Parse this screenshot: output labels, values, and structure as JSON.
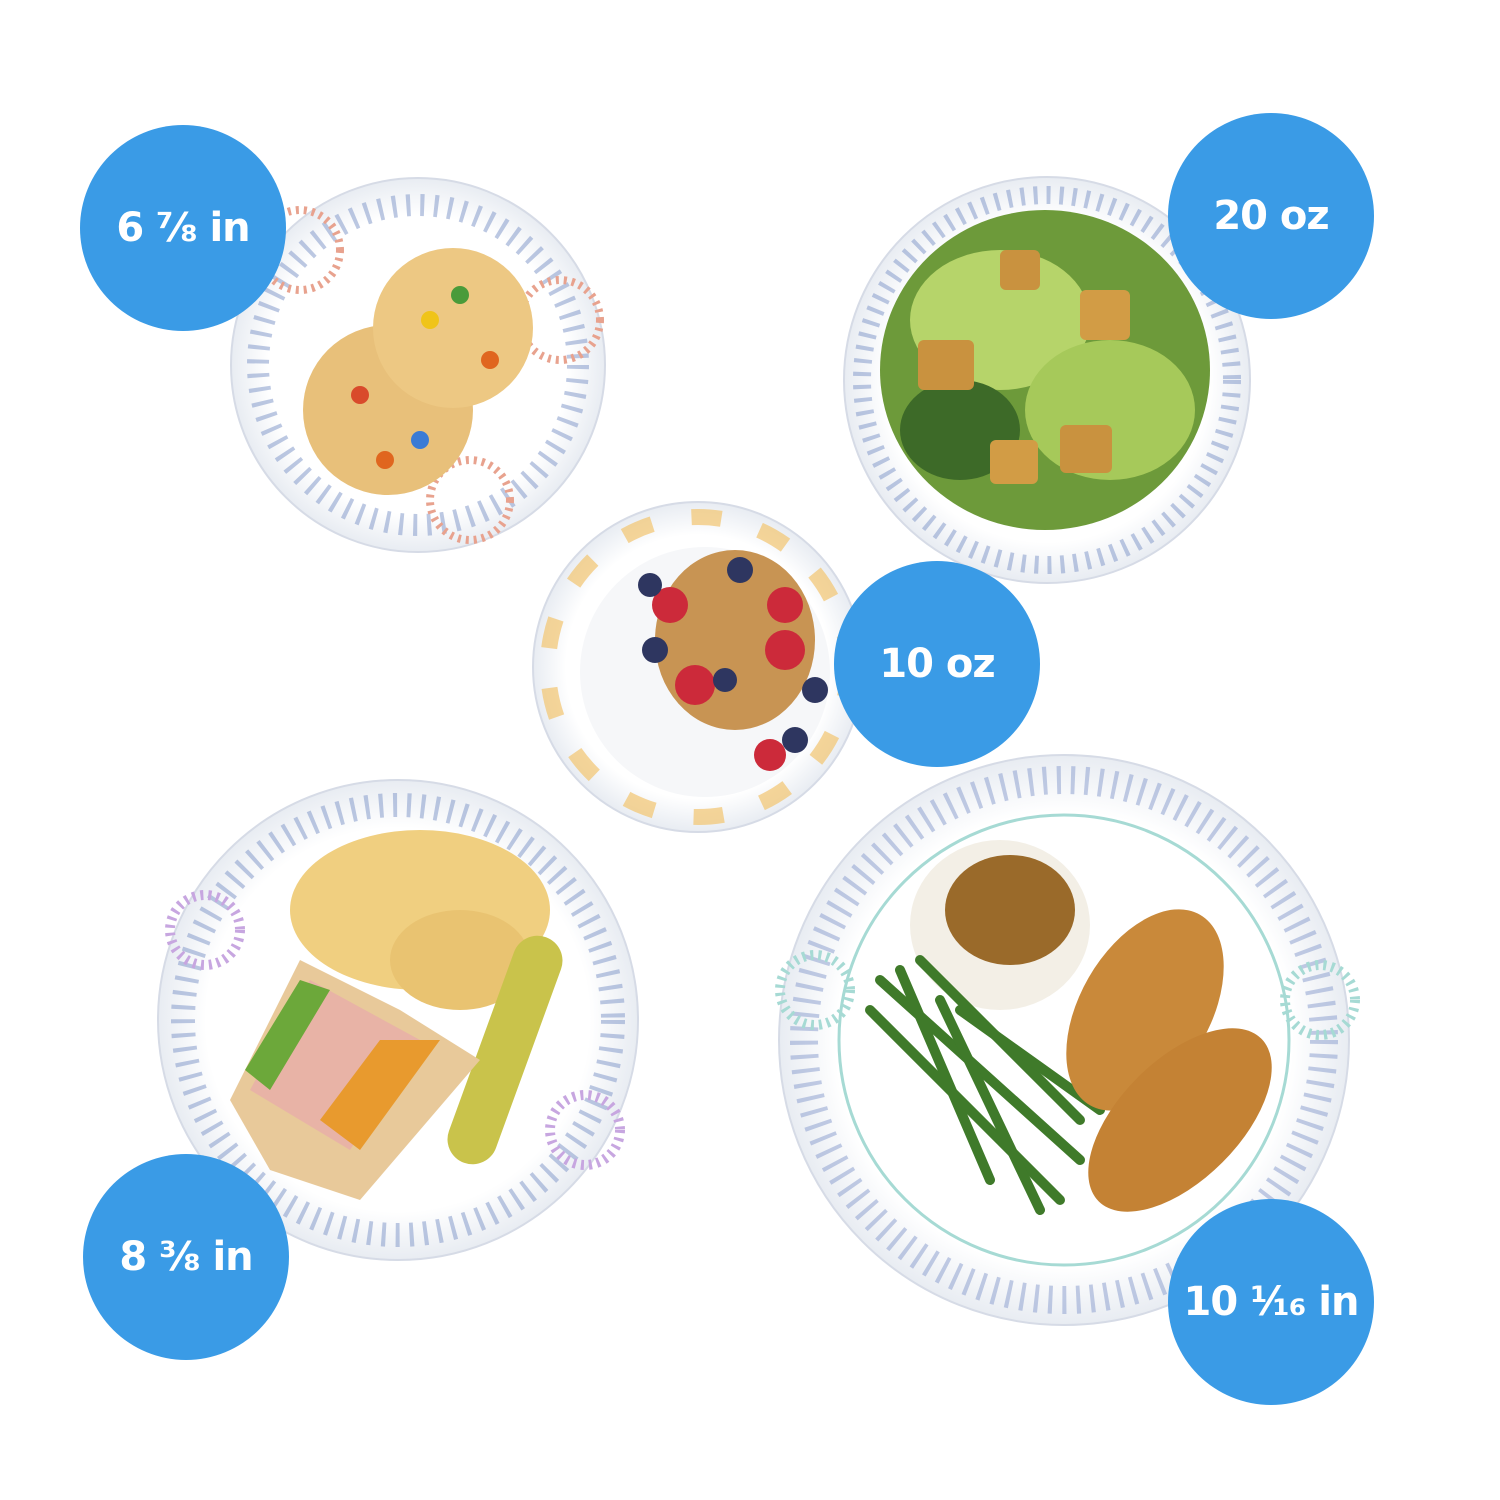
{
  "badge_color": "#3a9be6",
  "badges": [
    {
      "label": "6 ⅞ in",
      "item": "small plate diameter"
    },
    {
      "label": "20 oz",
      "item": "large bowl capacity"
    },
    {
      "label": "10 oz",
      "item": "small bowl capacity"
    },
    {
      "label": "8 ⅜ in",
      "item": "medium plate diameter"
    },
    {
      "label": "10 ¹⁄₁₆ in",
      "item": "large plate diameter"
    }
  ]
}
